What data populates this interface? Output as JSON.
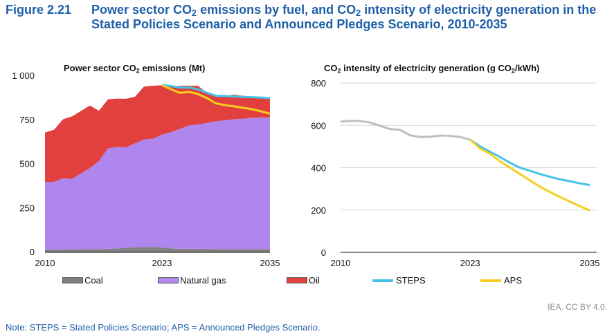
{
  "figure": {
    "number": "Figure 2.21",
    "title_parts": [
      "Power sector CO",
      "2",
      " emissions by fuel, and CO",
      "2",
      " intensity of electricity generation in the Stated Policies Scenario and Announced Pledges Scenario, 2010-2035"
    ]
  },
  "left_panel_title": [
    "Power sector CO",
    "2",
    " emissions (Mt)"
  ],
  "right_panel_title": [
    "CO",
    "2",
    " intensity of electricity generation (g CO",
    "2",
    "/kWh)"
  ],
  "legend": {
    "coal": "Coal",
    "natural_gas": "Natural gas",
    "oil": "Oil",
    "steps": "STEPS",
    "aps": "APS"
  },
  "source": "IEA. CC BY 4.0.",
  "note": "Note: STEPS = Stated Policies Scenario; APS = Announced Pledges Scenario.",
  "colors": {
    "coal": "#808080",
    "natural_gas": "#ae86ee",
    "oil": "#e2403e",
    "steps": "#45c2ea",
    "aps": "#f7cf1c",
    "historical": "#bfbfbf",
    "title": "#1f5fa8"
  },
  "chart_data": [
    {
      "type": "area",
      "stacked": true,
      "title": "Power sector CO2 emissions (Mt)",
      "x": [
        2010,
        2011,
        2012,
        2013,
        2014,
        2015,
        2016,
        2017,
        2018,
        2019,
        2020,
        2021,
        2022,
        2023,
        2024,
        2025,
        2026,
        2027,
        2028,
        2029,
        2030,
        2031,
        2032,
        2033,
        2034,
        2035
      ],
      "x_tick_labels": [
        "2010",
        "2023",
        "2035"
      ],
      "y_ticks": [
        0,
        250,
        500,
        750,
        "1 000"
      ],
      "ylim": [
        0,
        1000
      ],
      "grid": false,
      "series": [
        {
          "name": "Coal",
          "values": [
            15,
            15,
            15,
            16,
            17,
            18,
            18,
            20,
            22,
            26,
            28,
            30,
            30,
            28,
            22,
            20,
            20,
            20,
            19,
            19,
            18,
            18,
            18,
            18,
            18,
            17
          ]
        },
        {
          "name": "Natural gas",
          "values": [
            385,
            385,
            405,
            400,
            430,
            460,
            500,
            570,
            575,
            570,
            590,
            610,
            615,
            640,
            660,
            680,
            700,
            705,
            715,
            725,
            730,
            737,
            740,
            745,
            747,
            748
          ]
        },
        {
          "name": "Oil",
          "values": [
            280,
            295,
            335,
            355,
            355,
            355,
            285,
            278,
            275,
            275,
            265,
            300,
            300,
            280,
            255,
            245,
            225,
            220,
            170,
            150,
            140,
            140,
            130,
            120,
            110,
            105
          ]
        }
      ],
      "scenario_lines": [
        {
          "name": "STEPS",
          "x": [
            2023,
            2024,
            2025,
            2026,
            2027,
            2028,
            2029,
            2030,
            2031,
            2032,
            2033,
            2034,
            2035
          ],
          "values": [
            950,
            943,
            935,
            935,
            925,
            905,
            888,
            887,
            885,
            882,
            880,
            878,
            875
          ]
        },
        {
          "name": "APS",
          "x": [
            2023,
            2024,
            2025,
            2026,
            2027,
            2028,
            2029,
            2030,
            2031,
            2032,
            2033,
            2034,
            2035
          ],
          "values": [
            948,
            925,
            905,
            910,
            898,
            875,
            845,
            835,
            828,
            820,
            812,
            800,
            787
          ]
        }
      ]
    },
    {
      "type": "line",
      "title": "CO2 intensity of electricity generation (g CO2/kWh)",
      "x_tick_labels": [
        "2010",
        "2023",
        "2035"
      ],
      "y_ticks": [
        0,
        200,
        400,
        600,
        800
      ],
      "ylim": [
        0,
        800
      ],
      "grid": true,
      "series": [
        {
          "name": "Historical",
          "x": [
            2010,
            2011,
            2012,
            2013,
            2014,
            2015,
            2016,
            2017,
            2018,
            2019,
            2020,
            2021,
            2022,
            2023
          ],
          "values": [
            617,
            621,
            620,
            613,
            597,
            582,
            578,
            552,
            545,
            546,
            552,
            550,
            545,
            532
          ]
        },
        {
          "name": "STEPS",
          "x": [
            2023,
            2024,
            2025,
            2026,
            2027,
            2028,
            2029,
            2030,
            2031,
            2032,
            2033,
            2034,
            2035
          ],
          "values": [
            532,
            500,
            475,
            450,
            423,
            400,
            385,
            370,
            357,
            345,
            336,
            326,
            318
          ]
        },
        {
          "name": "APS",
          "x": [
            2023,
            2024,
            2025,
            2026,
            2027,
            2028,
            2029,
            2030,
            2031,
            2032,
            2033,
            2034,
            2035
          ],
          "values": [
            532,
            490,
            465,
            430,
            400,
            370,
            340,
            310,
            285,
            262,
            240,
            218,
            198
          ]
        }
      ]
    }
  ]
}
